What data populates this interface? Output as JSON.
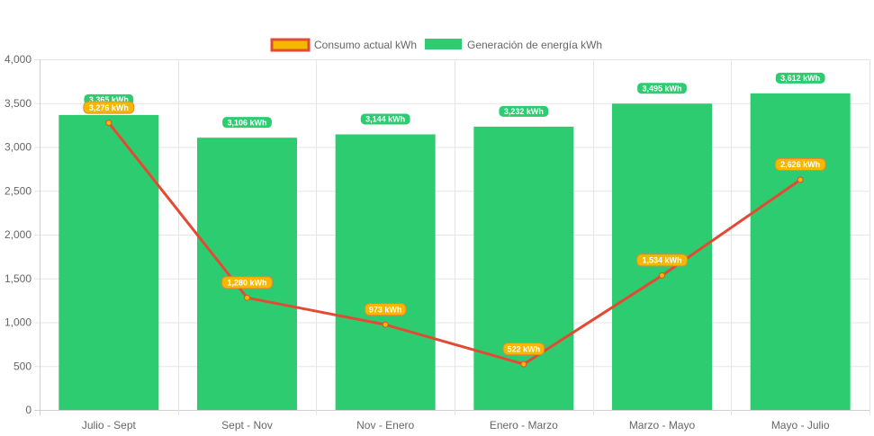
{
  "chart_data": {
    "type": "bar",
    "categories": [
      "Julio - Sept",
      "Sept - Nov",
      "Nov - Enero",
      "Enero - Marzo",
      "Marzo - Mayo",
      "Mayo - Julio"
    ],
    "ylim": [
      0,
      4000
    ],
    "yticks": [
      0,
      500,
      1000,
      1500,
      2000,
      2500,
      3000,
      3500,
      4000
    ],
    "ytick_labels": [
      "0",
      "500",
      "1,000",
      "1,500",
      "2,000",
      "2,500",
      "3,000",
      "3,500",
      "4,000"
    ],
    "grid": true,
    "legend_position": "top-center",
    "series": [
      {
        "name": "Consumo actual kWh",
        "type": "line",
        "values": [
          3276,
          1280,
          973,
          522,
          1534,
          2626
        ],
        "labels": [
          "3,276 kWh",
          "1,280 kWh",
          "973 kWh",
          "522 kWh",
          "1,534 kWh",
          "2,626 kWh"
        ],
        "color": "#e34a33",
        "label_bg": "#f5b800",
        "point_color": "#f5b800"
      },
      {
        "name": "Generación de energía kWh",
        "type": "bar",
        "values": [
          3365,
          3106,
          3144,
          3232,
          3495,
          3612
        ],
        "labels": [
          "3,365 kWh",
          "3,106 kWh",
          "3,144 kWh",
          "3,232 kWh",
          "3,495 kWh",
          "3,612 kWh"
        ],
        "color": "#2ecc71",
        "label_bg": "#2ecc71"
      }
    ]
  }
}
